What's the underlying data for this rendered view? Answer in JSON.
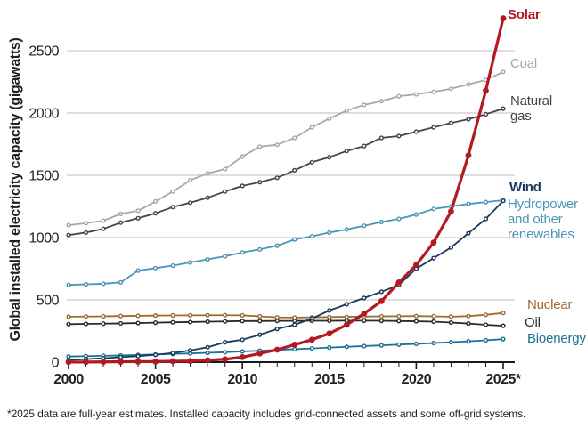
{
  "chart_data": {
    "type": "line",
    "title": "",
    "ylabel": "Global installed electricity capacity (gigawatts)",
    "xlabel": "",
    "footnote": "*2025 data are full-year estimates. Installed capacity includes grid-connected assets and some off-grid systems.",
    "grid": "horizontal-only",
    "legend_position": "right-end-of-line-labels",
    "axis_color": "#1a1a1a",
    "gridline_color": "#c9c9c9",
    "tick_label_color": "#231f20",
    "ylim": [
      0,
      2800
    ],
    "y_ticks": [
      0,
      500,
      1000,
      1500,
      2000,
      2500
    ],
    "x": [
      2000,
      2001,
      2002,
      2003,
      2004,
      2005,
      2006,
      2007,
      2008,
      2009,
      2010,
      2011,
      2012,
      2013,
      2014,
      2015,
      2016,
      2017,
      2018,
      2019,
      2020,
      2021,
      2022,
      2023,
      2024,
      2025
    ],
    "x_major_ticks": [
      2000,
      2005,
      2010,
      2015,
      2020,
      2025
    ],
    "x_tick_labels": [
      "2000",
      "2005",
      "2010",
      "2015",
      "2020",
      "2025*"
    ],
    "series": [
      {
        "id": "solar",
        "name": "Solar",
        "color": "#b11a21",
        "label_lines": [
          "Solar"
        ],
        "label_bold": true,
        "emphasis": true,
        "draw_order": 8,
        "label_pos": {
          "x": 570,
          "y": 8
        },
        "values": [
          1,
          1,
          2,
          3,
          4,
          5,
          7,
          9,
          15,
          23,
          40,
          70,
          100,
          140,
          180,
          230,
          300,
          390,
          490,
          640,
          780,
          960,
          1210,
          1660,
          2180,
          2760
        ]
      },
      {
        "id": "coal",
        "name": "Coal",
        "color": "#a6a8ab",
        "label_lines": [
          "Coal"
        ],
        "label_bold": false,
        "emphasis": false,
        "draw_order": 1,
        "label_pos": {
          "x": 573,
          "y": 63
        },
        "values": [
          1100,
          1115,
          1135,
          1190,
          1215,
          1290,
          1370,
          1460,
          1515,
          1550,
          1650,
          1730,
          1745,
          1800,
          1885,
          1955,
          2020,
          2065,
          2095,
          2135,
          2150,
          2170,
          2195,
          2230,
          2265,
          2330
        ]
      },
      {
        "id": "natural-gas",
        "name": "Natural gas",
        "color": "#454547",
        "label_lines": [
          "Natural",
          "gas"
        ],
        "label_bold": false,
        "emphasis": false,
        "draw_order": 2,
        "label_pos": {
          "x": 573,
          "y": 105
        },
        "values": [
          1020,
          1040,
          1070,
          1120,
          1155,
          1195,
          1245,
          1280,
          1320,
          1370,
          1415,
          1445,
          1480,
          1540,
          1605,
          1645,
          1695,
          1735,
          1800,
          1815,
          1850,
          1885,
          1920,
          1950,
          1990,
          2035
        ]
      },
      {
        "id": "wind",
        "name": "Wind",
        "color": "#17395c",
        "label_lines": [
          "Wind"
        ],
        "label_bold": true,
        "emphasis": false,
        "draw_order": 7,
        "label_pos": {
          "x": 572,
          "y": 202
        },
        "values": [
          17,
          24,
          31,
          40,
          48,
          59,
          74,
          94,
          120,
          160,
          180,
          220,
          267,
          300,
          350,
          415,
          465,
          515,
          565,
          620,
          750,
          835,
          920,
          1035,
          1150,
          1295
        ]
      },
      {
        "id": "hydropower",
        "name": "Hydropower and other renewables",
        "color": "#4a96b8",
        "label_lines": [
          "Hydropower",
          "and other",
          "renewables"
        ],
        "label_bold": false,
        "emphasis": false,
        "draw_order": 3,
        "label_pos": {
          "x": 570,
          "y": 221
        },
        "values": [
          620,
          625,
          630,
          640,
          735,
          755,
          775,
          800,
          825,
          850,
          880,
          905,
          935,
          985,
          1010,
          1040,
          1065,
          1095,
          1125,
          1150,
          1185,
          1230,
          1250,
          1270,
          1285,
          1300
        ]
      },
      {
        "id": "nuclear",
        "name": "Nuclear",
        "color": "#9d6a32",
        "label_lines": [
          "Nuclear"
        ],
        "label_bold": false,
        "emphasis": false,
        "draw_order": 4,
        "label_pos": {
          "x": 592,
          "y": 334
        },
        "values": [
          365,
          366,
          368,
          370,
          372,
          374,
          375,
          376,
          377,
          377,
          376,
          368,
          360,
          358,
          360,
          362,
          364,
          366,
          368,
          369,
          370,
          368,
          365,
          370,
          380,
          395
        ]
      },
      {
        "id": "oil",
        "name": "Oil",
        "color": "#2b2a29",
        "label_lines": [
          "Oil"
        ],
        "label_bold": false,
        "emphasis": false,
        "draw_order": 5,
        "label_pos": {
          "x": 589,
          "y": 354
        },
        "values": [
          305,
          307,
          309,
          311,
          314,
          317,
          320,
          322,
          325,
          327,
          330,
          330,
          331,
          331,
          332,
          332,
          333,
          333,
          332,
          330,
          328,
          325,
          318,
          310,
          300,
          292
        ]
      },
      {
        "id": "bioenergy",
        "name": "Bioenergy",
        "color": "#1b7093",
        "label_lines": [
          "Bioenergy"
        ],
        "label_bold": false,
        "emphasis": false,
        "draw_order": 6,
        "label_pos": {
          "x": 592,
          "y": 372
        },
        "values": [
          45,
          48,
          51,
          54,
          58,
          62,
          66,
          70,
          75,
          80,
          86,
          92,
          98,
          104,
          110,
          117,
          123,
          129,
          135,
          141,
          147,
          153,
          160,
          167,
          175,
          185
        ]
      }
    ]
  }
}
